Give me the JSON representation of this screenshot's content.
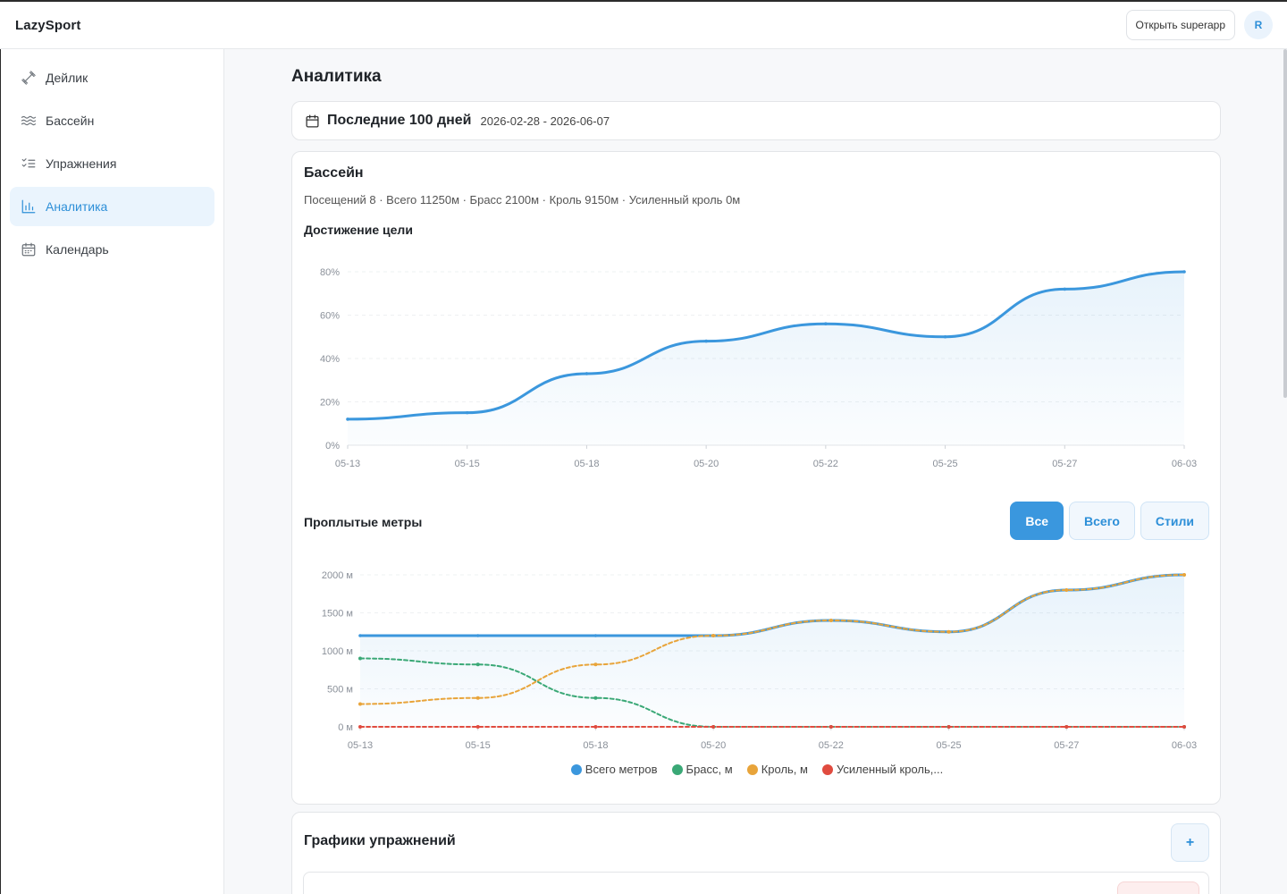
{
  "header": {
    "brand": "LazySport",
    "open_superapp": "Открыть superapp",
    "avatar_initial": "R"
  },
  "sidebar": {
    "items": [
      {
        "label": "Дейлик",
        "icon": "dumbbell-icon"
      },
      {
        "label": "Бассейн",
        "icon": "waves-icon"
      },
      {
        "label": "Упражнения",
        "icon": "checklist-icon"
      },
      {
        "label": "Аналитика",
        "icon": "bar-chart-icon",
        "active": true
      },
      {
        "label": "Календарь",
        "icon": "calendar-icon"
      }
    ]
  },
  "page": {
    "title": "Аналитика",
    "range": {
      "icon": "calendar-icon",
      "label": "Последние 100 дней",
      "dates": "2026-02-28 - 2026-06-07"
    }
  },
  "pool_card": {
    "title": "Бассейн",
    "stats": "Посещений 8 · Всего 11250м · Брасс 2100м · Кроль 9150м · Усиленный кроль 0м",
    "goal_title": "Достижение цели",
    "meters_title": "Проплытые метры",
    "segments": [
      "Все",
      "Всего",
      "Стили"
    ],
    "active_segment": "Все"
  },
  "exercise_card": {
    "title": "Графики упражнений",
    "add_label": "+"
  },
  "colors": {
    "accent": "#3a97de",
    "total": "#3b97dd",
    "breaststroke": "#3aa876",
    "crawl": "#e8a43a",
    "boosted_crawl": "#e04b3f"
  },
  "chart_data": [
    {
      "type": "area",
      "title": "Достижение цели",
      "categories": [
        "05-13",
        "05-15",
        "05-18",
        "05-20",
        "05-22",
        "05-25",
        "05-27",
        "06-03"
      ],
      "y_ticks": [
        "0%",
        "20%",
        "40%",
        "60%",
        "80%"
      ],
      "ylim": [
        0,
        80
      ],
      "series": [
        {
          "values": [
            12,
            15,
            33,
            48,
            56,
            50,
            72,
            80
          ],
          "color": "#3b97dd"
        }
      ],
      "grid": true
    },
    {
      "type": "line",
      "title": "Проплытые метры",
      "categories": [
        "05-13",
        "05-15",
        "05-18",
        "05-20",
        "05-22",
        "05-25",
        "05-27",
        "06-03"
      ],
      "y_ticks": [
        "0 м",
        "500 м",
        "1000 м",
        "1500 м",
        "2000 м"
      ],
      "ylim": [
        0,
        2000
      ],
      "series": [
        {
          "name": "Всего метров",
          "values": [
            1200,
            1200,
            1200,
            1200,
            1400,
            1250,
            1800,
            2000
          ],
          "color": "#3b97dd"
        },
        {
          "name": "Брасс, м",
          "values": [
            900,
            820,
            380,
            0,
            0,
            0,
            0,
            0
          ],
          "color": "#3aa876"
        },
        {
          "name": "Кроль, м",
          "values": [
            300,
            380,
            820,
            1200,
            1400,
            1250,
            1800,
            2000
          ],
          "color": "#e8a43a"
        },
        {
          "name": "Усиленный кроль,...",
          "values": [
            0,
            0,
            0,
            0,
            0,
            0,
            0,
            0
          ],
          "color": "#e04b3f"
        }
      ],
      "legend": "bottom",
      "grid": true
    }
  ]
}
